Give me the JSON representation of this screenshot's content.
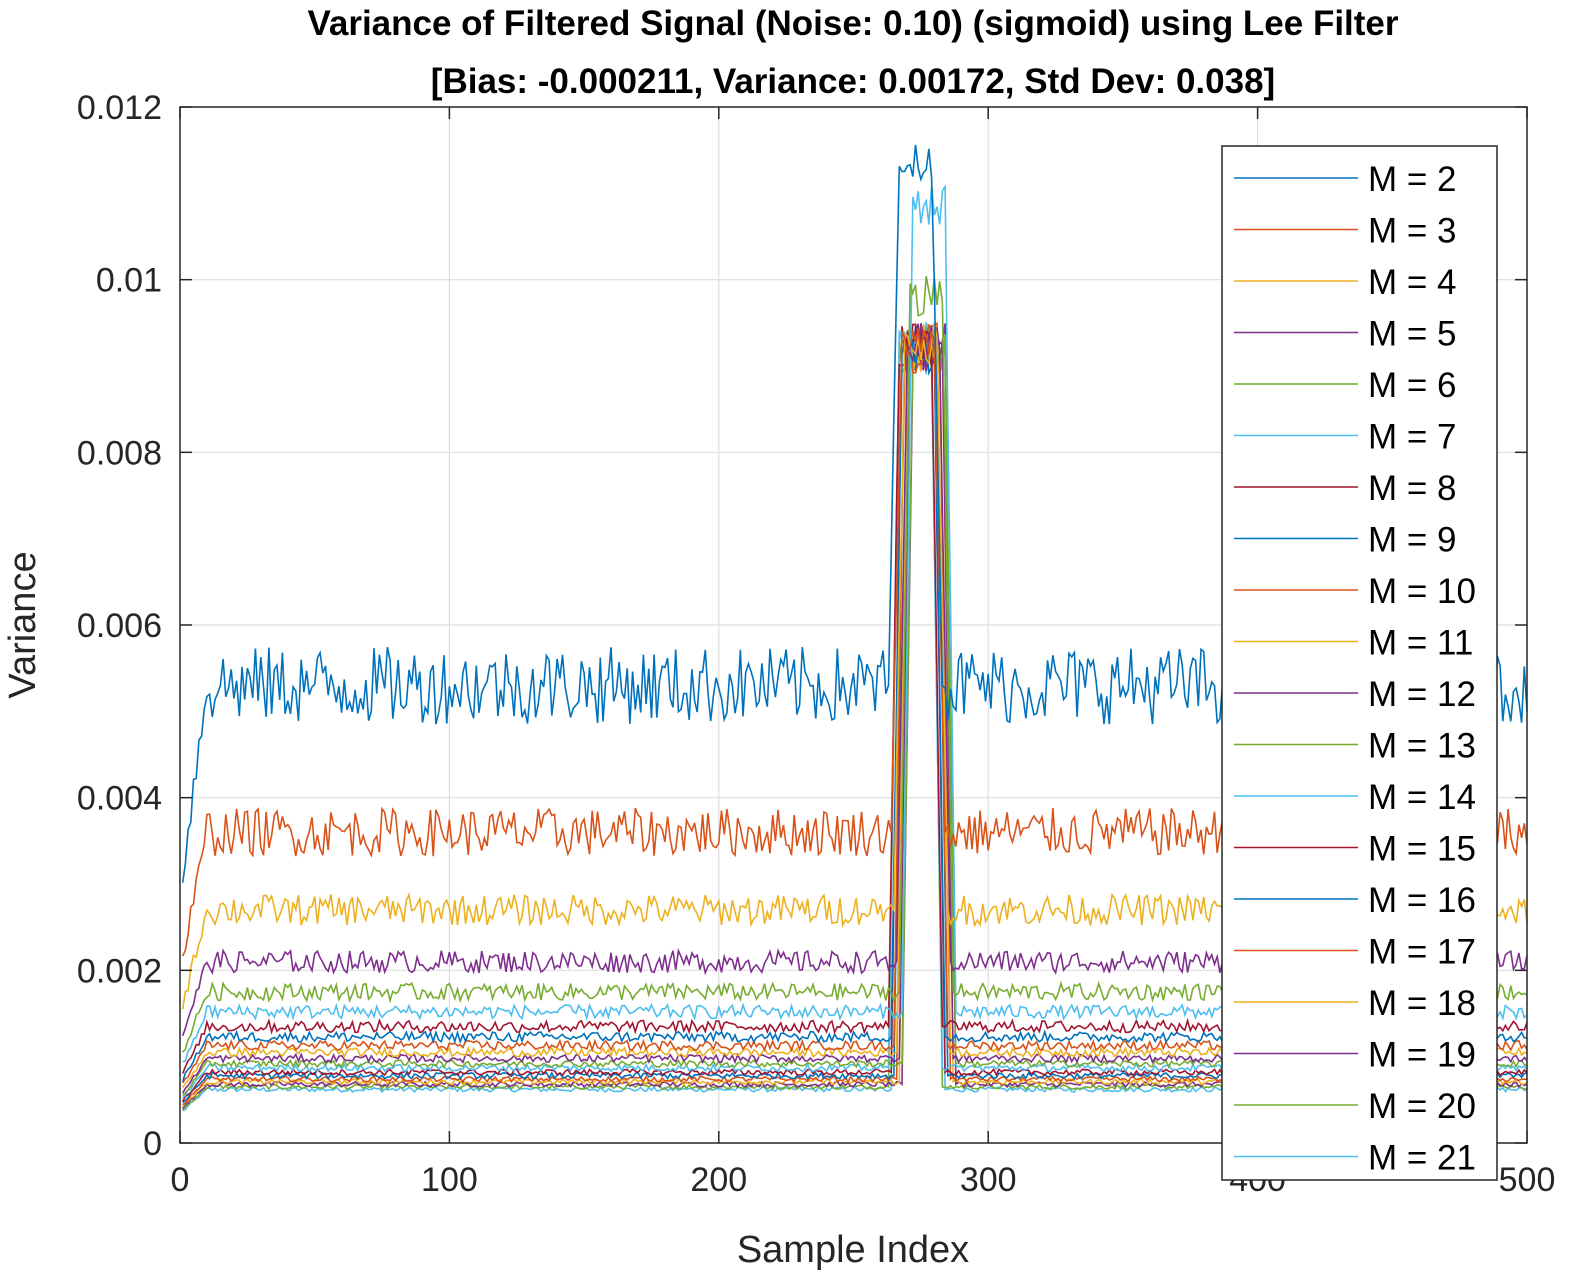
{
  "chart_data": {
    "type": "line",
    "title": "Variance of Filtered Signal (Noise: 0.10) (sigmoid) using Lee Filter",
    "subtitle": "[Bias: -0.000211, Variance: 0.00172, Std Dev: 0.038]",
    "xlabel": "Sample Index",
    "ylabel": "Variance",
    "xlim": [
      0,
      500
    ],
    "ylim": [
      0,
      0.012
    ],
    "xticks": [
      0,
      100,
      200,
      300,
      400,
      500
    ],
    "xtick_labels": [
      "0",
      "100",
      "200",
      "300",
      "400",
      "500"
    ],
    "yticks": [
      0,
      0.002,
      0.004,
      0.006,
      0.008,
      0.01,
      0.012
    ],
    "ytick_labels": [
      "0",
      "0.002",
      "0.004",
      "0.006",
      "0.008",
      "0.01",
      "0.012"
    ],
    "grid": true,
    "legend_position": "top-right",
    "num_samples": 500,
    "peak_region": [
      265,
      285
    ],
    "peak_values": {
      "M = 2": 0.0116,
      "M = 7": 0.0112,
      "M = 6": 0.0101,
      "others": 0.0095
    },
    "series": [
      {
        "name": "M = 2",
        "color": "#0072BD",
        "baseline": 0.0053,
        "noise": 0.00045
      },
      {
        "name": "M = 3",
        "color": "#D95319",
        "baseline": 0.0036,
        "noise": 0.00028
      },
      {
        "name": "M = 4",
        "color": "#EDB120",
        "baseline": 0.0027,
        "noise": 0.00018
      },
      {
        "name": "M = 5",
        "color": "#7E2F8E",
        "baseline": 0.0021,
        "noise": 0.00013
      },
      {
        "name": "M = 6",
        "color": "#77AC30",
        "baseline": 0.00175,
        "noise": 0.0001
      },
      {
        "name": "M = 7",
        "color": "#4DBEEE",
        "baseline": 0.00152,
        "noise": 8e-05
      },
      {
        "name": "M = 8",
        "color": "#A2142F",
        "baseline": 0.00135,
        "noise": 7e-05
      },
      {
        "name": "M = 9",
        "color": "#0072BD",
        "baseline": 0.00123,
        "noise": 6e-05
      },
      {
        "name": "M = 10",
        "color": "#D95319",
        "baseline": 0.00113,
        "noise": 5.5e-05
      },
      {
        "name": "M = 11",
        "color": "#EDB120",
        "baseline": 0.00105,
        "noise": 5e-05
      },
      {
        "name": "M = 12",
        "color": "#7E2F8E",
        "baseline": 0.00098,
        "noise": 4.5e-05
      },
      {
        "name": "M = 13",
        "color": "#77AC30",
        "baseline": 0.00092,
        "noise": 4e-05
      },
      {
        "name": "M = 14",
        "color": "#4DBEEE",
        "baseline": 0.00087,
        "noise": 4e-05
      },
      {
        "name": "M = 15",
        "color": "#A2142F",
        "baseline": 0.00082,
        "noise": 3.5e-05
      },
      {
        "name": "M = 16",
        "color": "#0072BD",
        "baseline": 0.00078,
        "noise": 3.5e-05
      },
      {
        "name": "M = 17",
        "color": "#D95319",
        "baseline": 0.00074,
        "noise": 3e-05
      },
      {
        "name": "M = 18",
        "color": "#EDB120",
        "baseline": 0.00071,
        "noise": 3e-05
      },
      {
        "name": "M = 19",
        "color": "#7E2F8E",
        "baseline": 0.00068,
        "noise": 3e-05
      },
      {
        "name": "M = 20",
        "color": "#77AC30",
        "baseline": 0.00065,
        "noise": 2.8e-05
      },
      {
        "name": "M = 21",
        "color": "#4DBEEE",
        "baseline": 0.00062,
        "noise": 2.8e-05
      }
    ]
  }
}
